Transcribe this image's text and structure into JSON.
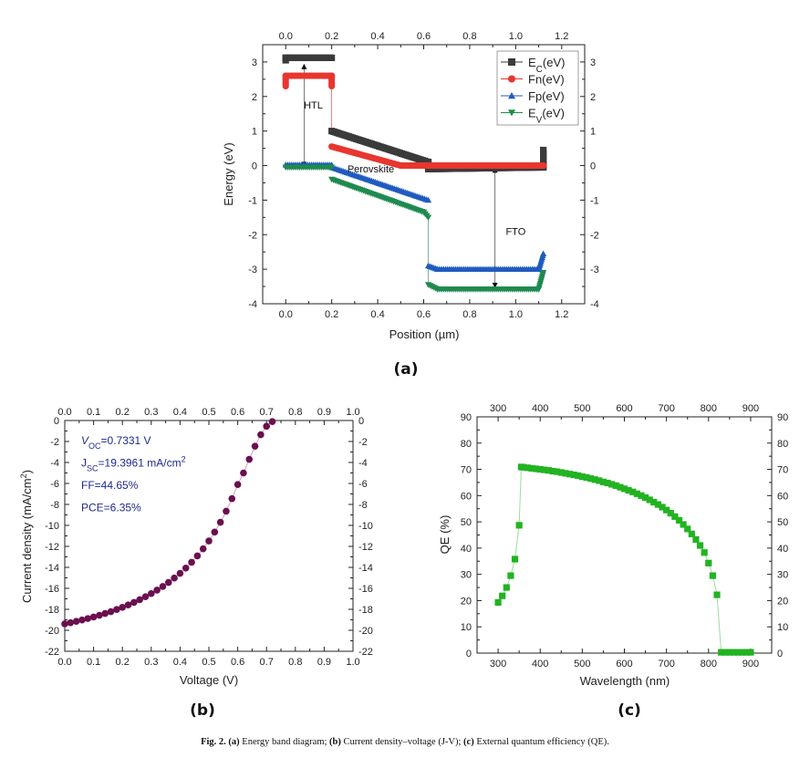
{
  "caption": {
    "fig_label": "Fig. 2.",
    "parts": [
      {
        "tag": "(a)",
        "text": " Energy band diagram; "
      },
      {
        "tag": "(b)",
        "text": " Current density–voltage (J-V); "
      },
      {
        "tag": "(c)",
        "text": " External quantum efficiency (QE)."
      }
    ]
  },
  "chart_data": [
    {
      "id": "a",
      "panel_label": "(a)",
      "type": "line",
      "title": "Energy band diagram",
      "xlabel": "Position (µm)",
      "ylabel": "Energy (eV)",
      "xlim": [
        -0.1,
        1.3
      ],
      "ylim": [
        -4,
        3.5
      ],
      "xticks": [
        0.0,
        0.2,
        0.4,
        0.6,
        0.8,
        1.0,
        1.2
      ],
      "xtick_labels": [
        "0.0",
        "0.2",
        "0.4",
        "0.6",
        "0.8",
        "1.0",
        "1.2"
      ],
      "yticks": [
        -4,
        -3,
        -2,
        -1,
        0,
        1,
        2,
        3
      ],
      "ytick_labels": [
        "-4",
        "-3",
        "-2",
        "-1",
        "0",
        "1",
        "2",
        "3"
      ],
      "grid": false,
      "legend_position": "top-right",
      "series": [
        {
          "name": "Ec(eV)",
          "legend_main": "E",
          "legend_sub": "C",
          "legend_tail": "(eV)",
          "color": "#3a3a3a",
          "marker": "square",
          "segments": [
            [
              [
                0.0,
                3.05
              ],
              [
                0.0,
                3.12
              ],
              [
                0.2,
                3.12
              ]
            ],
            [
              [
                0.2,
                1.0
              ],
              [
                0.62,
                0.1
              ],
              [
                0.62,
                -0.1
              ],
              [
                1.12,
                -0.05
              ],
              [
                1.12,
                0.45
              ]
            ]
          ]
        },
        {
          "name": "Fn(eV)",
          "legend_main": "Fn",
          "legend_sub": "",
          "legend_tail": "(eV)",
          "color": "#e8362f",
          "marker": "circle",
          "segments": [
            [
              [
                0.0,
                2.3
              ],
              [
                0.0,
                2.6
              ],
              [
                0.2,
                2.6
              ],
              [
                0.2,
                2.3
              ]
            ],
            [
              [
                0.2,
                0.55
              ],
              [
                0.5,
                0.0
              ],
              [
                1.12,
                0.0
              ]
            ]
          ]
        },
        {
          "name": "Fp(eV)",
          "legend_main": "Fp",
          "legend_sub": "",
          "legend_tail": "(eV)",
          "color": "#1f5bbf",
          "marker": "triangle-up",
          "segments": [
            [
              [
                0.0,
                0.02
              ],
              [
                0.2,
                0.02
              ]
            ],
            [
              [
                0.2,
                -0.05
              ],
              [
                0.62,
                -1.0
              ]
            ],
            [
              [
                0.62,
                -2.9
              ],
              [
                0.66,
                -3.0
              ],
              [
                1.1,
                -3.0
              ],
              [
                1.12,
                -2.55
              ]
            ]
          ]
        },
        {
          "name": "Ev(eV)",
          "legend_main": "E",
          "legend_sub": "V",
          "legend_tail": "(eV)",
          "color": "#1e8a4f",
          "marker": "triangle-down",
          "segments": [
            [
              [
                0.0,
                -0.05
              ],
              [
                0.2,
                -0.05
              ]
            ],
            [
              [
                0.2,
                -0.4
              ],
              [
                0.6,
                -1.35
              ],
              [
                0.62,
                -1.5
              ]
            ],
            [
              [
                0.62,
                -3.45
              ],
              [
                0.66,
                -3.58
              ],
              [
                1.1,
                -3.58
              ],
              [
                1.12,
                -3.1
              ]
            ]
          ]
        }
      ],
      "annotations": [
        {
          "text": "HTL",
          "x": 0.12,
          "y": 1.65
        },
        {
          "text": "Perovskite",
          "x": 0.37,
          "y": -0.2
        },
        {
          "text": "FTO",
          "x": 1.0,
          "y": -2.0
        }
      ],
      "arrows": [
        {
          "x": 0.08,
          "y1": 2.95,
          "y2": -0.05
        },
        {
          "x": 0.91,
          "y1": -0.05,
          "y2": -3.55
        }
      ]
    },
    {
      "id": "b",
      "panel_label": "(b)",
      "type": "scatter",
      "title": "Current density–voltage (J-V)",
      "xlabel": "Voltage (V)",
      "ylabel": "Current density (mA/cm²)",
      "ylabel_main": "Current density (mA/cm",
      "ylabel_sup": "2",
      "ylabel_tail": ")",
      "xlim": [
        0.0,
        1.0
      ],
      "ylim": [
        -22,
        0
      ],
      "xticks": [
        0.0,
        0.1,
        0.2,
        0.3,
        0.4,
        0.5,
        0.6,
        0.7,
        0.8,
        0.9,
        1.0
      ],
      "xtick_labels": [
        "0.0",
        "0.1",
        "0.2",
        "0.3",
        "0.4",
        "0.5",
        "0.6",
        "0.7",
        "0.8",
        "0.9",
        "1.0"
      ],
      "yticks": [
        0,
        -2,
        -4,
        -6,
        -8,
        -10,
        -12,
        -14,
        -16,
        -18,
        -20,
        -22
      ],
      "ytick_labels": [
        "0",
        "-2",
        "-4",
        "-6",
        "-8",
        "-10",
        "-12",
        "-14",
        "-16",
        "-18",
        "-20",
        "-22"
      ],
      "grid": false,
      "color": "#6b0f4f",
      "x": [
        0.0,
        0.02,
        0.04,
        0.06,
        0.08,
        0.1,
        0.12,
        0.14,
        0.16,
        0.18,
        0.2,
        0.22,
        0.24,
        0.26,
        0.28,
        0.3,
        0.32,
        0.34,
        0.36,
        0.38,
        0.4,
        0.42,
        0.44,
        0.46,
        0.48,
        0.5,
        0.52,
        0.54,
        0.56,
        0.58,
        0.6,
        0.62,
        0.64,
        0.66,
        0.68,
        0.7,
        0.72
      ],
      "y": [
        -19.39,
        -19.28,
        -19.15,
        -19.02,
        -18.88,
        -18.73,
        -18.57,
        -18.4,
        -18.22,
        -18.02,
        -17.81,
        -17.58,
        -17.34,
        -17.08,
        -16.8,
        -16.5,
        -16.17,
        -15.82,
        -15.44,
        -15.02,
        -14.57,
        -14.07,
        -13.52,
        -12.91,
        -12.23,
        -11.48,
        -10.64,
        -9.7,
        -8.65,
        -7.45,
        -6.1,
        -5.0,
        -3.7,
        -2.45,
        -1.35,
        -0.55,
        -0.1
      ],
      "parameters": [
        {
          "main": "V",
          "sub": "OC",
          "value": "=0.7331 V",
          "italic": true
        },
        {
          "main": "J",
          "sub": "SC",
          "value": "=19.3961 mA/cm",
          "sup": "2",
          "italic": false
        },
        {
          "main": "FF=44.65%",
          "sub": "",
          "value": "",
          "italic": false
        },
        {
          "main": "PCE=6.35%",
          "sub": "",
          "value": "",
          "italic": false
        }
      ]
    },
    {
      "id": "c",
      "panel_label": "(c)",
      "type": "scatter",
      "title": "External quantum efficiency (QE)",
      "xlabel": "Wavelength (nm)",
      "ylabel": "QE (%)",
      "xlim": [
        250,
        950
      ],
      "ylim": [
        0,
        90
      ],
      "xticks": [
        300,
        400,
        500,
        600,
        700,
        800,
        900
      ],
      "xtick_labels": [
        "300",
        "400",
        "500",
        "600",
        "700",
        "800",
        "900"
      ],
      "yticks": [
        0,
        10,
        20,
        30,
        40,
        50,
        60,
        70,
        80,
        90
      ],
      "ytick_labels": [
        "0",
        "10",
        "20",
        "30",
        "40",
        "50",
        "60",
        "70",
        "80",
        "90"
      ],
      "grid": false,
      "color": "#22b322",
      "x": [
        300,
        310,
        320,
        330,
        340,
        350,
        355,
        360,
        370,
        380,
        390,
        400,
        410,
        420,
        430,
        440,
        450,
        460,
        470,
        480,
        490,
        500,
        510,
        520,
        530,
        540,
        550,
        560,
        570,
        580,
        590,
        600,
        610,
        620,
        630,
        640,
        650,
        660,
        670,
        680,
        690,
        700,
        710,
        720,
        730,
        740,
        750,
        760,
        770,
        780,
        790,
        800,
        810,
        820,
        830,
        840,
        850,
        860,
        870,
        880,
        890,
        900
      ],
      "y": [
        19.3,
        21.8,
        25.0,
        29.5,
        35.8,
        48.7,
        70.9,
        70.8,
        70.6,
        70.4,
        70.2,
        70.0,
        69.8,
        69.6,
        69.3,
        69.1,
        68.8,
        68.5,
        68.2,
        67.9,
        67.6,
        67.2,
        66.9,
        66.5,
        66.1,
        65.7,
        65.2,
        64.8,
        64.3,
        63.8,
        63.2,
        62.6,
        62.0,
        61.4,
        60.7,
        60.0,
        59.2,
        58.4,
        57.5,
        56.6,
        55.6,
        54.5,
        53.3,
        52.0,
        50.6,
        49.0,
        47.3,
        45.4,
        43.3,
        41.0,
        38.3,
        34.3,
        29.5,
        22.2,
        0.3,
        0.3,
        0.3,
        0.3,
        0.3,
        0.3,
        0.3,
        0.3
      ]
    }
  ]
}
